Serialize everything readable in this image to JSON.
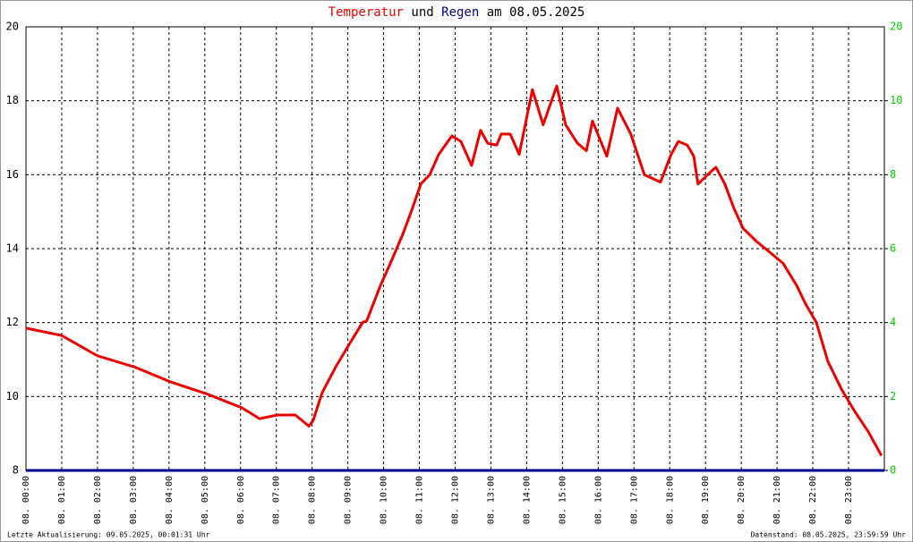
{
  "chart_data": {
    "type": "line",
    "title_parts": [
      "und",
      "am 08.05.2025"
    ],
    "footer_left": "Letzte Aktualisierung: 09.05.2025, 00:01:31 Uhr",
    "footer_right": "Datenstand: 08.05.2025, 23:59:59 Uhr",
    "xlim": [
      0,
      24
    ],
    "xticks": [
      {
        "value": 0,
        "label": "08. 00:00"
      },
      {
        "value": 1,
        "label": "08. 01:00"
      },
      {
        "value": 2,
        "label": "08. 02:00"
      },
      {
        "value": 3,
        "label": "08. 03:00"
      },
      {
        "value": 4,
        "label": "08. 04:00"
      },
      {
        "value": 5,
        "label": "08. 05:00"
      },
      {
        "value": 6,
        "label": "08. 06:00"
      },
      {
        "value": 7,
        "label": "08. 07:00"
      },
      {
        "value": 8,
        "label": "08. 08:00"
      },
      {
        "value": 9,
        "label": "08. 09:00"
      },
      {
        "value": 10,
        "label": "08. 10:00"
      },
      {
        "value": 11,
        "label": "08. 11:00"
      },
      {
        "value": 12,
        "label": "08. 12:00"
      },
      {
        "value": 13,
        "label": "08. 13:00"
      },
      {
        "value": 14,
        "label": "08. 14:00"
      },
      {
        "value": 15,
        "label": "08. 15:00"
      },
      {
        "value": 16,
        "label": "08. 16:00"
      },
      {
        "value": 17,
        "label": "08. 17:00"
      },
      {
        "value": 18,
        "label": "08. 18:00"
      },
      {
        "value": 19,
        "label": "08. 19:00"
      },
      {
        "value": 20,
        "label": "08. 20:00"
      },
      {
        "value": 21,
        "label": "08. 21:00"
      },
      {
        "value": 22,
        "label": "08. 22:00"
      },
      {
        "value": 23,
        "label": "08. 23:00"
      }
    ],
    "ylim": [
      8,
      20
    ],
    "yticks": [
      8,
      10,
      12,
      14,
      16,
      18,
      20
    ],
    "y2lim": [
      0,
      12
    ],
    "y2ticks": [
      0,
      2,
      4,
      6,
      8,
      10
    ],
    "y2_top_label": "20",
    "y2_color": "#00cc00",
    "grid": true,
    "series": [
      {
        "name": "Temperatur",
        "color": "#ee0000",
        "x": [
          0,
          1.0,
          2.0,
          3.03,
          4.03,
          5.03,
          6.03,
          6.53,
          7.03,
          7.53,
          7.91,
          8.03,
          8.28,
          8.66,
          9.03,
          9.41,
          9.53,
          9.91,
          10.21,
          10.54,
          10.79,
          11.04,
          11.29,
          11.54,
          11.91,
          12.16,
          12.46,
          12.71,
          12.91,
          13.16,
          13.29,
          13.54,
          13.79,
          14.16,
          14.46,
          14.84,
          15.09,
          15.42,
          15.67,
          15.84,
          16.24,
          16.54,
          16.91,
          17.29,
          17.74,
          18.04,
          18.24,
          18.49,
          18.67,
          18.79,
          19.17,
          19.29,
          19.54,
          19.79,
          20.05,
          20.42,
          20.8,
          21.17,
          21.55,
          21.8,
          22.1,
          22.42,
          22.8,
          23.17,
          23.55,
          23.92
        ],
        "values": [
          11.85,
          11.65,
          11.1,
          10.8,
          10.4,
          10.08,
          9.7,
          9.4,
          9.5,
          9.5,
          9.2,
          9.35,
          10.1,
          10.8,
          11.4,
          12.0,
          12.05,
          13.0,
          13.65,
          14.4,
          15.05,
          15.75,
          16.0,
          16.55,
          17.05,
          16.9,
          16.25,
          17.2,
          16.85,
          16.8,
          17.1,
          17.1,
          16.55,
          18.3,
          17.35,
          18.4,
          17.35,
          16.85,
          16.65,
          17.45,
          16.5,
          17.8,
          17.1,
          16.0,
          15.8,
          16.55,
          16.9,
          16.8,
          16.5,
          15.75,
          16.1,
          16.2,
          15.75,
          15.1,
          14.55,
          14.2,
          13.9,
          13.6,
          13.0,
          12.5,
          12.0,
          10.95,
          10.2,
          9.6,
          9.05,
          8.4
        ]
      },
      {
        "name": "Regen",
        "color": "#000088",
        "axis": "y2",
        "x": [
          0,
          24
        ],
        "values": [
          0,
          0
        ]
      }
    ]
  }
}
